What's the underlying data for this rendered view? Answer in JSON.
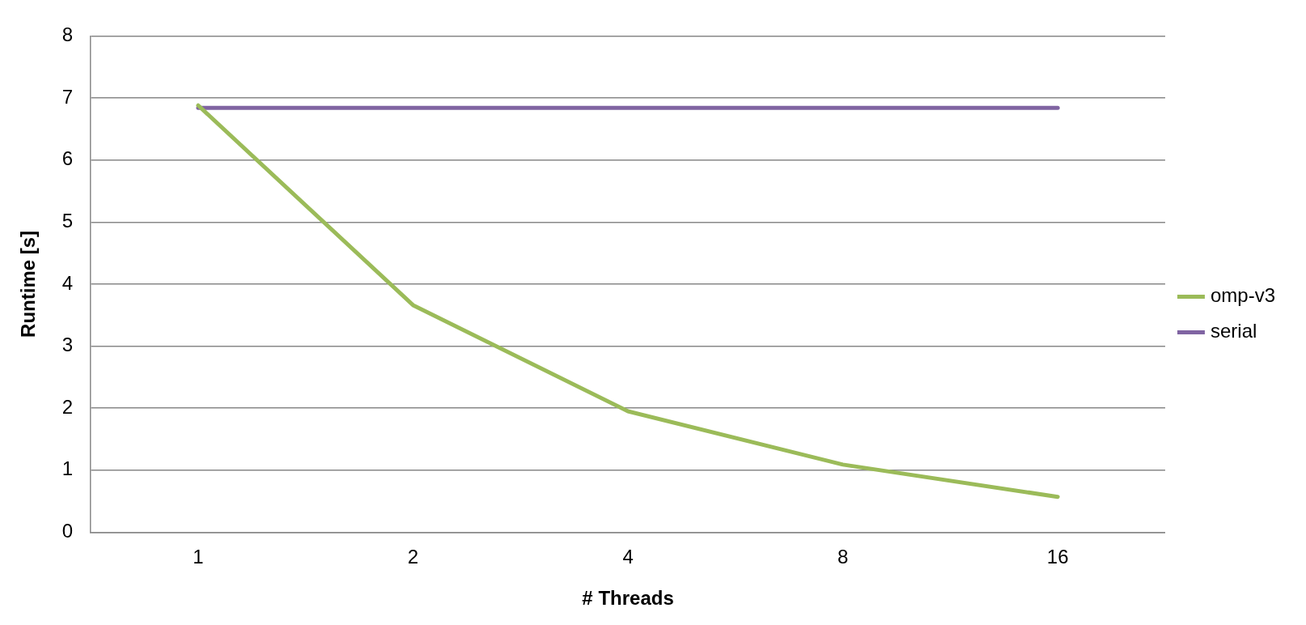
{
  "chart_data": {
    "type": "line",
    "xlabel": "# Threads",
    "ylabel": "Runtime [s]",
    "categories": [
      "1",
      "2",
      "4",
      "8",
      "16"
    ],
    "series": [
      {
        "name": "omp-v3",
        "color": "#9bbb59",
        "values": [
          6.88,
          3.66,
          1.95,
          1.09,
          0.57
        ]
      },
      {
        "name": "serial",
        "color": "#8064a2",
        "values": [
          6.84,
          6.84,
          6.84,
          6.84,
          6.84
        ]
      }
    ],
    "ylim": [
      0,
      8
    ],
    "yticks": [
      0,
      1,
      2,
      3,
      4,
      5,
      6,
      7,
      8
    ],
    "grid": "y",
    "legend": "right",
    "marker": "none",
    "line_style": "solid"
  }
}
